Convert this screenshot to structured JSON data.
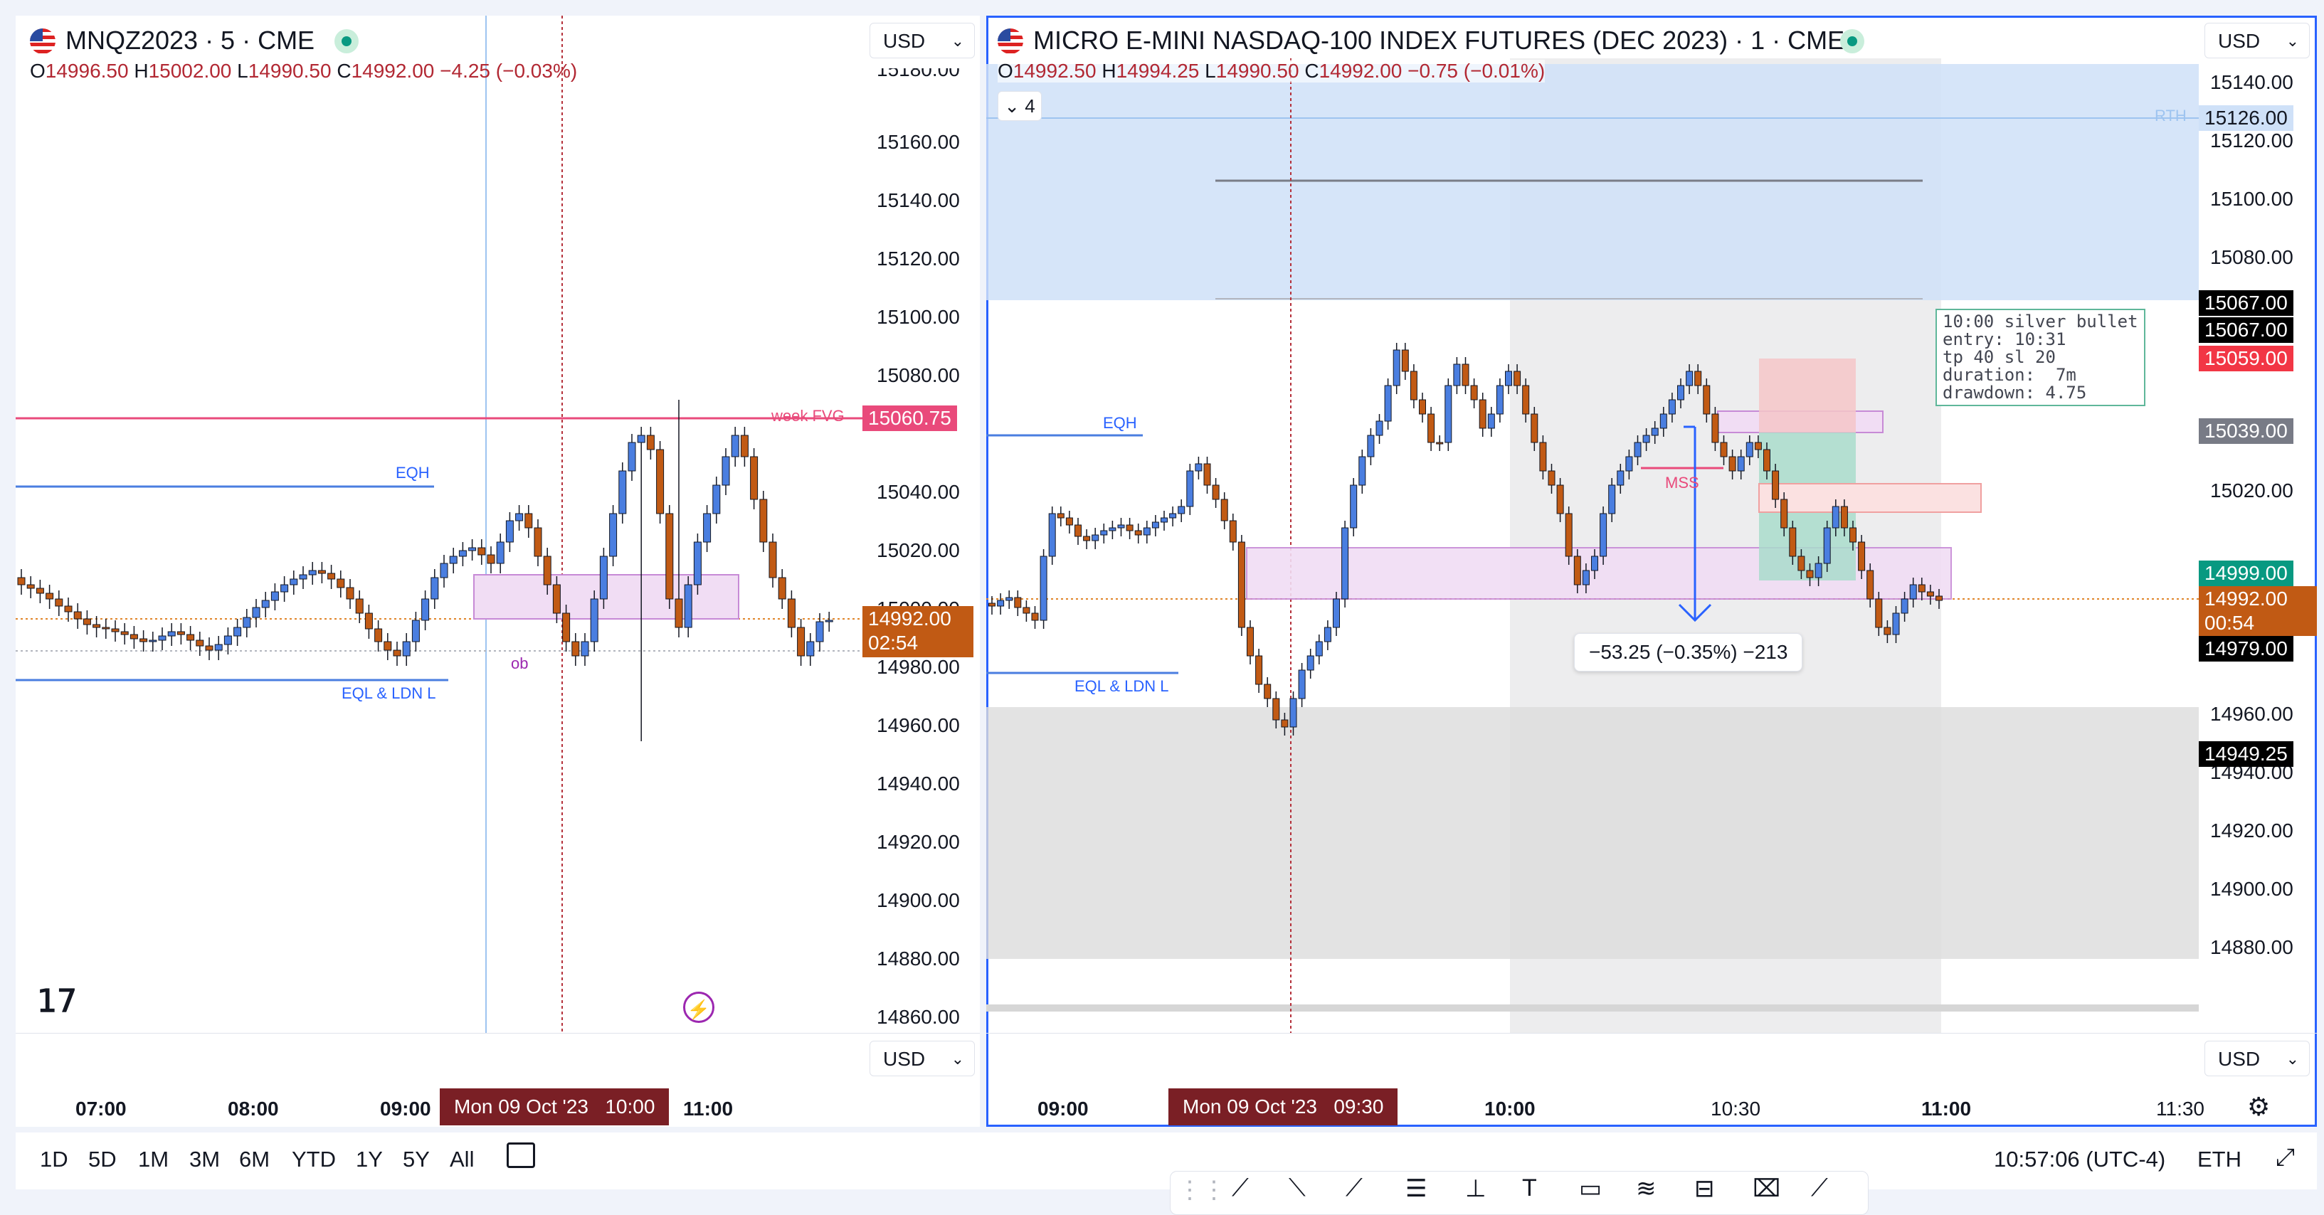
{
  "left": {
    "symbol": "MNQZ2023 · 5 · CME",
    "ohlc": {
      "o_label": "O",
      "o": "14996.50",
      "h_label": "H",
      "h": "15002.00",
      "l_label": "L",
      "l": "14990.50",
      "c_label": "C",
      "c": "14992.00",
      "chg": "−4.25 (−0.03%)"
    },
    "currency": "USD",
    "price_labels": [
      "15180.00",
      "15160.00",
      "15140.00",
      "15120.00",
      "15100.00",
      "15080.00",
      "15060.00",
      "15040.00",
      "15020.00",
      "15000.00",
      "14980.00",
      "14960.00",
      "14940.00",
      "14920.00",
      "14900.00",
      "14880.00",
      "14860.00"
    ],
    "week_fvg_label": "week FVG",
    "week_fvg_price": "15060.75",
    "last_price": "14992.00",
    "countdown": "02:54",
    "eqh_label": "EQH",
    "eql_label": "EQL & LDN L",
    "ob_label": "ob",
    "time_labels": [
      "07:00",
      "08:00",
      "09:00",
      "11:00"
    ],
    "crosshair_date": "Mon 09 Oct '23",
    "crosshair_time": "10:00",
    "bottom_currency": "USD"
  },
  "right": {
    "symbol": "MICRO E-MINI NASDAQ-100 INDEX FUTURES (DEC 2023) · 1 · CME",
    "ohlc": {
      "o_label": "O",
      "o": "14992.50",
      "h_label": "H",
      "h": "14994.25",
      "l_label": "L",
      "l": "14990.50",
      "c_label": "C",
      "c": "14992.00",
      "chg": "−0.75 (−0.01%)"
    },
    "indicators_count": "4",
    "currency": "USD",
    "price_labels": [
      "15140.00",
      "15120.00",
      "15100.00",
      "15080.00",
      "15020.00",
      "14960.00",
      "14940.00",
      "14920.00",
      "14900.00",
      "14880.00"
    ],
    "rth_label": "RTH",
    "rth_price": "15126.00",
    "tags": {
      "t1": "15067.00",
      "t2": "15067.00",
      "t3": "15059.00",
      "t4": "15039.00",
      "t5": "14999.00",
      "last": "14992.00",
      "countdown": "00:54",
      "t6": "14979.00",
      "t7": "14949.25"
    },
    "eqh_label": "EQH",
    "eql_label": "EQL & LDN L",
    "mss_label": "MSS",
    "note": "10:00 silver bullet\nentry: 10:31\ntp 40 sl 20\nduration:  7m\ndrawdown: 4.75",
    "measure": "−53.25 (−0.35%) −213",
    "time_labels": [
      "09:00",
      "10:00",
      "10:30",
      "11:00",
      "11:30"
    ],
    "crosshair_date": "Mon 09 Oct '23",
    "crosshair_time": "09:30",
    "bottom_currency": "USD"
  },
  "bottom_bar": {
    "ranges": [
      "1D",
      "5D",
      "1M",
      "3M",
      "6M",
      "YTD",
      "1Y",
      "5Y",
      "All"
    ],
    "clock": "10:57:06 (UTC-4)",
    "session": "ETH"
  },
  "colors": {
    "up": "#4a7ee0",
    "down": "#c15a14",
    "accent": "#2962ff",
    "fvg": "#e91e63"
  }
}
